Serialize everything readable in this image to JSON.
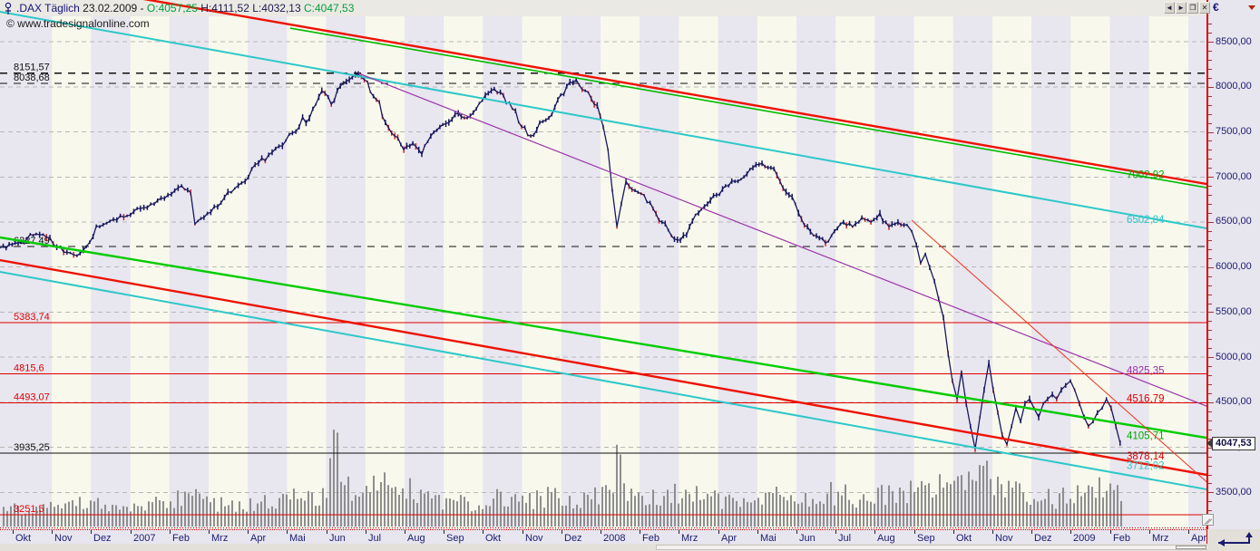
{
  "titlebar": {
    "symbol": ".DAX Täglich",
    "date": "23.02.2009",
    "separator": "-",
    "ohlc": [
      {
        "label": "O:",
        "value": "4057,25",
        "color": "#00a03c"
      },
      {
        "label": "H:",
        "value": "4111,52",
        "color": "#1a1a50"
      },
      {
        "label": "L:",
        "value": "4032,13",
        "color": "#1a1a50"
      },
      {
        "label": "C:",
        "value": "4047,53",
        "color": "#00a03c"
      }
    ],
    "window_buttons": [
      {
        "name": "scroll-left",
        "glyph": "◄"
      },
      {
        "name": "scroll-right",
        "glyph": "►"
      },
      {
        "name": "restore-window",
        "glyph": "❐"
      },
      {
        "name": "close-window",
        "glyph": "✕"
      }
    ]
  },
  "copyright": "© www.tradesignalonline.com",
  "axis_panel": {
    "currency": "€"
  },
  "colors": {
    "stripe_a": "#e8e6ef",
    "stripe_b": "#f8f9ec",
    "grid": "#b8b8b8",
    "axis_line": "#dd0000",
    "label_navy": "#1b1b70",
    "price_line": "#17175e",
    "candle_down": "#cc2222",
    "volume": "#8e8e8e",
    "red": "#ee1100",
    "green": "#00bb00",
    "cyan": "#2cc8c8",
    "purple": "#9932a8",
    "black": "#111111"
  },
  "chart_data": {
    "type": "candlestick",
    "symbol": ".DAX",
    "timeframe": "Täglich",
    "last_quote": {
      "date": "23.02.2009",
      "open": 4057.25,
      "high": 4111.52,
      "low": 4032.13,
      "close": 4047.53
    },
    "x_axis_labels": [
      "Okt",
      "Nov",
      "Dez",
      "2007",
      "Feb",
      "Mrz",
      "Apr",
      "Mai",
      "Jun",
      "Jul",
      "Aug",
      "Sep",
      "Okt",
      "Nov",
      "Dez",
      "2008",
      "Feb",
      "Mrz",
      "Apr",
      "Mai",
      "Jun",
      "Jul",
      "Aug",
      "Sep",
      "Okt",
      "Nov",
      "Dez",
      "2009",
      "Feb",
      "Mrz",
      "Apr"
    ],
    "y_axis": {
      "min": 3100,
      "max": 8780,
      "tick_step": 500,
      "minor_step": 100,
      "ticks": [
        {
          "label": "8500,00",
          "value": 8500
        },
        {
          "label": "8000,00",
          "value": 8000
        },
        {
          "label": "7500,00",
          "value": 7500
        },
        {
          "label": "7000,00",
          "value": 7000
        },
        {
          "label": "6500,00",
          "value": 6500
        },
        {
          "label": "6000,00",
          "value": 6000
        },
        {
          "label": "5500,00",
          "value": 5500
        },
        {
          "label": "5000,00",
          "value": 5000
        },
        {
          "label": "4500,00",
          "value": 4500
        },
        {
          "label": "4000,00",
          "value": 4000
        },
        {
          "label": "3500,00",
          "value": 3500
        }
      ]
    },
    "price_marker": {
      "label": "4047,53",
      "value": 4047.53
    },
    "horizontal_levels": [
      {
        "label": "8151,57",
        "value": 8151.57,
        "color": "#111111",
        "dash": true
      },
      {
        "label": "8038,68",
        "value": 8038.68,
        "color": "#111111",
        "dash": true
      },
      {
        "label": "6227,49",
        "value": 6227.49,
        "color": "#111111",
        "dash": true
      },
      {
        "label": "5383,74",
        "value": 5383.74,
        "color": "#e00000",
        "dash": false
      },
      {
        "label": "4815,6",
        "value": 4815.6,
        "color": "#e00000",
        "dash": false
      },
      {
        "label": "4493,07",
        "value": 4493.07,
        "color": "#e00000",
        "dash": false
      },
      {
        "label": "3935,25",
        "value": 3935.25,
        "color": "#111111",
        "dash": false
      },
      {
        "label": "3251,5",
        "value": 3251.5,
        "color": "#e00000",
        "dash": false
      }
    ],
    "right_labels": [
      {
        "label": "7002,92",
        "at": 7030,
        "color": "#00aa00"
      },
      {
        "label": "6502,84",
        "at": 6530,
        "color": "#2cc8c8"
      },
      {
        "label": "4825,35",
        "at": 4855,
        "color": "#9932a8"
      },
      {
        "label": "4516,79",
        "at": 4545,
        "color": "#e00000"
      },
      {
        "label": "4105,71",
        "at": 4130,
        "color": "#00aa00"
      },
      {
        "label": "3878,14",
        "at": 3905,
        "color": "#e00000"
      },
      {
        "label": "3712,02",
        "at": 3800,
        "color": "#2cc8c8"
      }
    ],
    "trendlines": [
      {
        "name": "upper-downtrend-red",
        "color": "#ee1100",
        "w": 2.4,
        "m1": 7.08,
        "p1": 8691,
        "m2": 30.46,
        "p2": 6922,
        "extendLeft": true,
        "extendRight": true
      },
      {
        "name": "upper-downtrend-green",
        "color": "#00bb00",
        "w": 1.6,
        "m1": 7.08,
        "p1": 8651,
        "m2": 30.46,
        "p2": 6882,
        "extendLeft": false,
        "extendRight": true
      },
      {
        "name": "upper-downtrend-cyan",
        "color": "#2cc8c8",
        "w": 2.0,
        "m1": 1.875,
        "p1": 8661,
        "m2": 30.46,
        "p2": 6430,
        "extendLeft": true,
        "extendRight": true
      },
      {
        "name": "downtrend-purple",
        "color": "#9932a8",
        "w": 1.2,
        "m1": 8.82,
        "p1": 8150,
        "m2": 30.46,
        "p2": 4459,
        "extendLeft": false,
        "extendRight": true
      },
      {
        "name": "channel-green-lower",
        "color": "#00cc00",
        "w": 2.4,
        "m1": -0.32,
        "p1": 6329,
        "m2": 30.46,
        "p2": 4107,
        "extendLeft": true,
        "extendRight": true
      },
      {
        "name": "channel-red-lower",
        "color": "#ee1100",
        "w": 2.4,
        "m1": -0.32,
        "p1": 6077,
        "m2": 30.46,
        "p2": 3696,
        "extendLeft": true,
        "extendRight": true
      },
      {
        "name": "channel-cyan-lower",
        "color": "#2cc8c8",
        "w": 2.0,
        "m1": -0.32,
        "p1": 5947,
        "m2": 30.46,
        "p2": 3535,
        "extendLeft": true,
        "extendRight": true
      },
      {
        "name": "steep-downtrend-red",
        "color": "#ee3322",
        "w": 1.0,
        "m1": 22.94,
        "p1": 6520,
        "m2": 30.46,
        "p2": 3620,
        "extendLeft": false,
        "extendRight": true
      }
    ],
    "price_points": [
      [
        -0.32,
        6210
      ],
      [
        0.14,
        6267
      ],
      [
        0.6,
        6368
      ],
      [
        0.95,
        6327
      ],
      [
        1.3,
        6166
      ],
      [
        1.64,
        6126
      ],
      [
        1.88,
        6227
      ],
      [
        2.22,
        6448
      ],
      [
        2.57,
        6529
      ],
      [
        2.92,
        6569
      ],
      [
        3.26,
        6649
      ],
      [
        3.61,
        6700
      ],
      [
        3.96,
        6800
      ],
      [
        4.31,
        6901
      ],
      [
        4.54,
        6830
      ],
      [
        4.65,
        6478
      ],
      [
        4.88,
        6549
      ],
      [
        5.23,
        6669
      ],
      [
        5.58,
        6830
      ],
      [
        5.93,
        6951
      ],
      [
        6.27,
        7152
      ],
      [
        6.62,
        7273
      ],
      [
        6.97,
        7404
      ],
      [
        7.31,
        7555
      ],
      [
        7.66,
        7756
      ],
      [
        7.89,
        7957
      ],
      [
        8.13,
        7806
      ],
      [
        8.36,
        8007
      ],
      [
        8.59,
        8078
      ],
      [
        8.82,
        8138
      ],
      [
        9.05,
        8058
      ],
      [
        9.28,
        7856
      ],
      [
        9.51,
        7605
      ],
      [
        9.75,
        7454
      ],
      [
        9.98,
        7303
      ],
      [
        10.21,
        7373
      ],
      [
        10.44,
        7253
      ],
      [
        10.67,
        7454
      ],
      [
        10.9,
        7555
      ],
      [
        11.13,
        7605
      ],
      [
        11.37,
        7706
      ],
      [
        11.6,
        7655
      ],
      [
        11.83,
        7756
      ],
      [
        12.06,
        7907
      ],
      [
        12.29,
        7977
      ],
      [
        12.52,
        7907
      ],
      [
        12.75,
        7756
      ],
      [
        12.99,
        7555
      ],
      [
        13.22,
        7454
      ],
      [
        13.45,
        7605
      ],
      [
        13.68,
        7655
      ],
      [
        13.91,
        7856
      ],
      [
        14.14,
        8007
      ],
      [
        14.38,
        8078
      ],
      [
        14.61,
        7957
      ],
      [
        14.84,
        7806
      ],
      [
        15.07,
        7555
      ],
      [
        15.19,
        7303
      ],
      [
        15.3,
        6850
      ],
      [
        15.42,
        6448
      ],
      [
        15.53,
        6700
      ],
      [
        15.65,
        6951
      ],
      [
        15.88,
        6850
      ],
      [
        16.11,
        6800
      ],
      [
        16.34,
        6649
      ],
      [
        16.57,
        6498
      ],
      [
        16.81,
        6347
      ],
      [
        17.04,
        6297
      ],
      [
        17.27,
        6448
      ],
      [
        17.5,
        6599
      ],
      [
        17.73,
        6700
      ],
      [
        17.96,
        6800
      ],
      [
        18.19,
        6901
      ],
      [
        18.43,
        6951
      ],
      [
        18.66,
        7001
      ],
      [
        18.89,
        7102
      ],
      [
        19.12,
        7152
      ],
      [
        19.35,
        7102
      ],
      [
        19.58,
        6951
      ],
      [
        19.81,
        6800
      ],
      [
        20.05,
        6599
      ],
      [
        20.28,
        6448
      ],
      [
        20.51,
        6347
      ],
      [
        20.74,
        6267
      ],
      [
        20.97,
        6398
      ],
      [
        21.2,
        6498
      ],
      [
        21.43,
        6448
      ],
      [
        21.67,
        6549
      ],
      [
        21.9,
        6498
      ],
      [
        22.13,
        6599
      ],
      [
        22.36,
        6448
      ],
      [
        22.59,
        6498
      ],
      [
        22.82,
        6468
      ],
      [
        22.94,
        6398
      ],
      [
        23.06,
        6247
      ],
      [
        23.17,
        6045
      ],
      [
        23.29,
        6146
      ],
      [
        23.4,
        5995
      ],
      [
        23.52,
        5844
      ],
      [
        23.63,
        5643
      ],
      [
        23.75,
        5442
      ],
      [
        23.87,
        5040
      ],
      [
        23.98,
        4738
      ],
      [
        24.1,
        4537
      ],
      [
        24.21,
        4838
      ],
      [
        24.33,
        4487
      ],
      [
        24.44,
        4235
      ],
      [
        24.56,
        3984
      ],
      [
        24.68,
        4336
      ],
      [
        24.79,
        4638
      ],
      [
        24.91,
        4940
      ],
      [
        25.02,
        4638
      ],
      [
        25.14,
        4386
      ],
      [
        25.25,
        4135
      ],
      [
        25.37,
        4034
      ],
      [
        25.49,
        4235
      ],
      [
        25.6,
        4436
      ],
      [
        25.72,
        4285
      ],
      [
        25.83,
        4487
      ],
      [
        25.95,
        4537
      ],
      [
        26.06,
        4436
      ],
      [
        26.18,
        4336
      ],
      [
        26.3,
        4487
      ],
      [
        26.41,
        4537
      ],
      [
        26.53,
        4587
      ],
      [
        26.64,
        4537
      ],
      [
        26.76,
        4638
      ],
      [
        26.87,
        4688
      ],
      [
        26.99,
        4738
      ],
      [
        27.1,
        4638
      ],
      [
        27.22,
        4487
      ],
      [
        27.34,
        4336
      ],
      [
        27.45,
        4235
      ],
      [
        27.57,
        4285
      ],
      [
        27.68,
        4386
      ],
      [
        27.8,
        4436
      ],
      [
        27.91,
        4537
      ],
      [
        28.03,
        4436
      ],
      [
        28.15,
        4235
      ],
      [
        28.26,
        4048
      ]
    ],
    "volume_profile": [
      [
        -0.3,
        0.22
      ],
      [
        1,
        0.25
      ],
      [
        2,
        0.3
      ],
      [
        3,
        0.28
      ],
      [
        4,
        0.32
      ],
      [
        4.6,
        0.45
      ],
      [
        5,
        0.3
      ],
      [
        6,
        0.3
      ],
      [
        7,
        0.35
      ],
      [
        8,
        0.45
      ],
      [
        8.2,
        1.0
      ],
      [
        8.5,
        0.5
      ],
      [
        9,
        0.45
      ],
      [
        9.5,
        0.55
      ],
      [
        10,
        0.5
      ],
      [
        11,
        0.35
      ],
      [
        12,
        0.3
      ],
      [
        12.5,
        0.4
      ],
      [
        13,
        0.35
      ],
      [
        14,
        0.4
      ],
      [
        14.5,
        0.35
      ],
      [
        15,
        0.45
      ],
      [
        15.42,
        0.8
      ],
      [
        15.7,
        0.5
      ],
      [
        16,
        0.45
      ],
      [
        16.5,
        0.4
      ],
      [
        17,
        0.45
      ],
      [
        17.5,
        0.4
      ],
      [
        18,
        0.35
      ],
      [
        18.5,
        0.3
      ],
      [
        19,
        0.35
      ],
      [
        19.5,
        0.4
      ],
      [
        20,
        0.45
      ],
      [
        20.5,
        0.4
      ],
      [
        21,
        0.45
      ],
      [
        21.5,
        0.35
      ],
      [
        22,
        0.4
      ],
      [
        22.5,
        0.45
      ],
      [
        23,
        0.5
      ],
      [
        23.5,
        0.55
      ],
      [
        23.9,
        0.6
      ],
      [
        24.2,
        0.55
      ],
      [
        24.56,
        0.5
      ],
      [
        24.7,
        0.77
      ],
      [
        25,
        0.5
      ],
      [
        25.4,
        0.45
      ],
      [
        26,
        0.4
      ],
      [
        26.5,
        0.35
      ],
      [
        27,
        0.4
      ],
      [
        27.5,
        0.45
      ],
      [
        28,
        0.5
      ],
      [
        28.26,
        0.45
      ]
    ]
  }
}
